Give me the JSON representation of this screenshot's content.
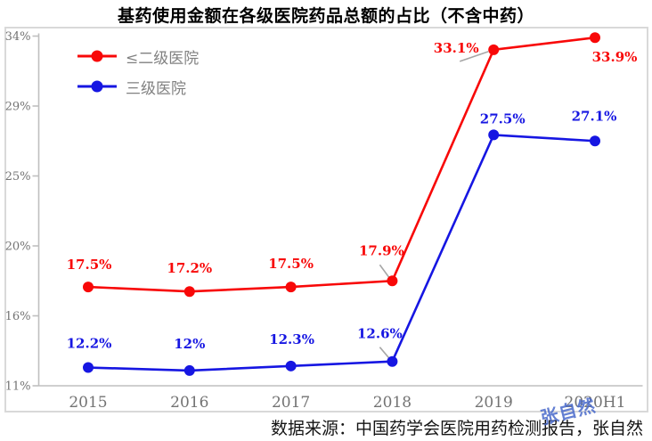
{
  "chart_data": {
    "type": "line",
    "title": "基药使用金额在各级医院药品总额的占比（不含中药）",
    "categories": [
      "2015",
      "2016",
      "2017",
      "2018",
      "2019",
      "2020H1"
    ],
    "series": [
      {
        "name": "≤二级医院",
        "color": "#f80808",
        "values": [
          17.5,
          17.2,
          17.5,
          17.9,
          33.1,
          33.9
        ],
        "point_labels": [
          "17.5%",
          "17.2%",
          "17.5%",
          "17.9%",
          "33.1%",
          "33.9%"
        ]
      },
      {
        "name": "三级医院",
        "color": "#1616e2",
        "values": [
          12.2,
          12.0,
          12.3,
          12.6,
          27.5,
          27.1
        ],
        "point_labels": [
          "12.2%",
          "12%",
          "12.3%",
          "12.6%",
          "27.5%",
          "27.1%"
        ]
      }
    ],
    "y_axis": {
      "min": 11,
      "max": 34,
      "tick_labels": [
        "34%",
        "29%",
        "25%",
        "20%",
        "16%",
        "11%"
      ]
    },
    "x_axis": {
      "tick_labels": [
        "2015",
        "2016",
        "2017",
        "2018",
        "2019",
        "2020H1"
      ]
    },
    "legend_position": "top-left",
    "grid": false,
    "axis_color": "#bfbfbf",
    "tick_text_color": "#737373",
    "leader_line_color": "#a6a6a6"
  },
  "footer": {
    "source": "数据来源：中国药学会医院用药检测报告，张自然"
  },
  "watermark": "张自然"
}
